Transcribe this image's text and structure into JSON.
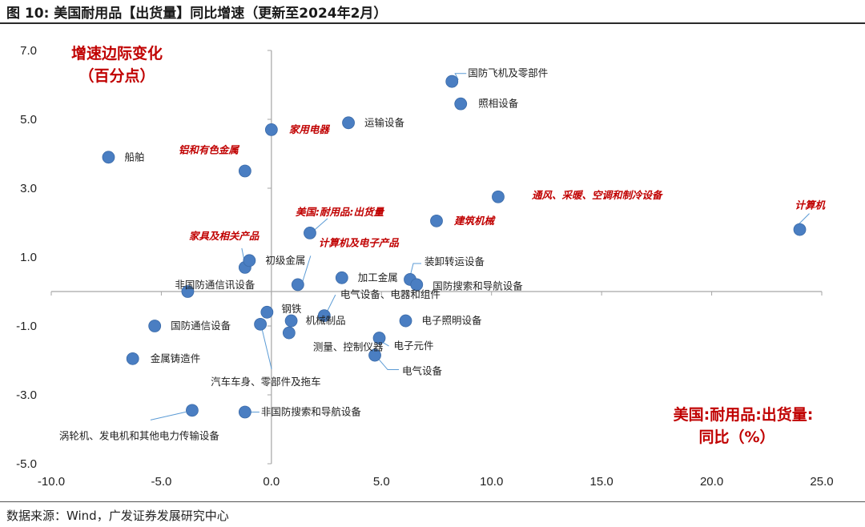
{
  "figure": {
    "title": "图 10: 美国耐用品【出货量】同比增速（更新至2024年2月）",
    "source": "数据来源：Wind，广发证券发展研究中心"
  },
  "chart_data": {
    "type": "scatter",
    "title": "",
    "xlabel_lines": [
      "美国:耐用品:出货量:",
      "同比（%）"
    ],
    "ylabel_lines": [
      "增速边际变化",
      "（百分点）"
    ],
    "xlim": [
      -10,
      25
    ],
    "ylim": [
      -5,
      7
    ],
    "x_ticks": [
      "-10.0",
      "-5.0",
      "0.0",
      "5.0",
      "10.0",
      "15.0",
      "20.0",
      "25.0"
    ],
    "y_ticks": [
      "7.0",
      "5.0",
      "3.0",
      "1.0",
      "-1.0",
      "-3.0",
      "-5.0"
    ],
    "grid": false,
    "colors": {
      "point": "#4a7ec2",
      "highlight": "#c00000",
      "leader": "#5b9bd5"
    },
    "points": [
      {
        "name": "国防飞机及零部件",
        "x": 8.2,
        "y": 6.1,
        "highlight": false
      },
      {
        "name": "照相设备",
        "x": 8.6,
        "y": 5.45,
        "highlight": false
      },
      {
        "name": "运输设备",
        "x": 3.5,
        "y": 4.9,
        "highlight": false
      },
      {
        "name": "家用电器",
        "x": 0.0,
        "y": 4.7,
        "highlight": true
      },
      {
        "name": "船舶",
        "x": -7.4,
        "y": 3.9,
        "highlight": false
      },
      {
        "name": "铝和有色金属",
        "x": -1.2,
        "y": 3.5,
        "highlight": true
      },
      {
        "name": "通风、采暖、空调和制冷设备",
        "x": 10.3,
        "y": 2.75,
        "highlight": true
      },
      {
        "name": "计算机",
        "x": 24.0,
        "y": 1.8,
        "highlight": true
      },
      {
        "name": "建筑机械",
        "x": 7.5,
        "y": 2.05,
        "highlight": true
      },
      {
        "name": "美国:耐用品:出货量",
        "x": 1.75,
        "y": 1.7,
        "highlight": true
      },
      {
        "name": "家具及相关产品",
        "x": -1.2,
        "y": 0.7,
        "highlight": true
      },
      {
        "name": "初级金属",
        "x": -1.0,
        "y": 0.9,
        "highlight": false
      },
      {
        "name": "计算机及电子产品",
        "x": 1.2,
        "y": 0.2,
        "highlight": true
      },
      {
        "name": "加工金属",
        "x": 3.2,
        "y": 0.4,
        "highlight": false
      },
      {
        "name": "装卸转运设备",
        "x": 6.3,
        "y": 0.35,
        "highlight": false
      },
      {
        "name": "国防搜索和导航设备",
        "x": 6.6,
        "y": 0.2,
        "highlight": false
      },
      {
        "name": "非国防通信讯设备",
        "x": -3.8,
        "y": 0.0,
        "highlight": false
      },
      {
        "name": "钢铁",
        "x": -0.2,
        "y": -0.6,
        "highlight": false
      },
      {
        "name": "电气设备、电器和组件",
        "x": 2.4,
        "y": -0.7,
        "highlight": false
      },
      {
        "name": "机械制品",
        "x": 0.9,
        "y": -0.85,
        "highlight": false
      },
      {
        "name": "汽车车身、零部件及拖车",
        "x": -0.5,
        "y": -0.95,
        "highlight": false
      },
      {
        "name": "测量、控制仪器",
        "x": 0.8,
        "y": -1.2,
        "highlight": false
      },
      {
        "name": "电子照明设备",
        "x": 6.1,
        "y": -0.85,
        "highlight": false
      },
      {
        "name": "国防通信设备",
        "x": -5.3,
        "y": -1.0,
        "highlight": false
      },
      {
        "name": "电子元件",
        "x": 4.9,
        "y": -1.35,
        "highlight": false
      },
      {
        "name": "金属铸造件",
        "x": -6.3,
        "y": -1.95,
        "highlight": false
      },
      {
        "name": "电气设备",
        "x": 4.7,
        "y": -1.85,
        "highlight": false
      },
      {
        "name": "涡轮机、发电机和其他电力传输设备",
        "x": -3.6,
        "y": -3.45,
        "highlight": false
      },
      {
        "name": "非国防搜索和导航设备",
        "x": -1.2,
        "y": -3.5,
        "highlight": false
      }
    ]
  }
}
